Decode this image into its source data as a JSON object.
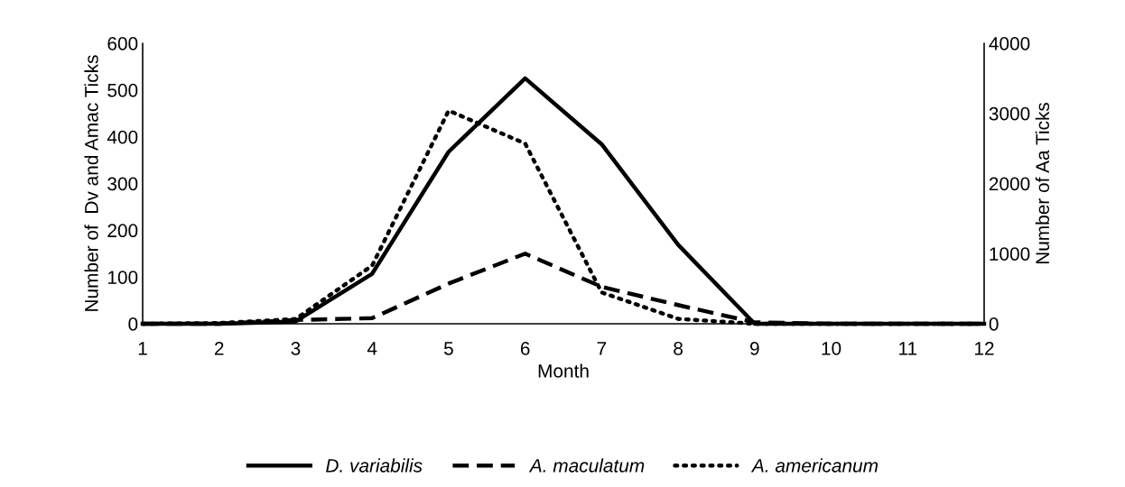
{
  "chart_data": {
    "type": "line",
    "xlabel": "Month",
    "ylabel": "Number of  Dv and Amac Ticks",
    "y2label": "Number of Aa Ticks",
    "x": [
      1,
      2,
      3,
      4,
      5,
      6,
      7,
      8,
      9,
      10,
      11,
      12
    ],
    "series": [
      {
        "name": "D. variabilis",
        "color": "#000000",
        "line_style": "solid",
        "values": [
          0,
          0,
          5,
          107,
          368,
          525,
          384,
          169,
          0,
          0,
          0,
          0
        ]
      },
      {
        "name": "A. maculatum",
        "color": "#000000",
        "line_style": "dashed",
        "values": [
          0,
          0,
          8,
          12,
          86,
          150,
          79,
          40,
          3,
          0,
          0,
          0
        ]
      },
      {
        "name": "A. americanum",
        "color": "#000000",
        "line_style": "dotted",
        "axis": "y2",
        "values": [
          0,
          10,
          67,
          830,
          3040,
          2570,
          447,
          70,
          0,
          0,
          0,
          0
        ]
      }
    ],
    "xlim": [
      1,
      12
    ],
    "xticks": [
      1,
      2,
      3,
      4,
      5,
      6,
      7,
      8,
      9,
      10,
      11,
      12
    ],
    "ylim": [
      0,
      600
    ],
    "yticks": [
      0,
      100,
      200,
      300,
      400,
      500,
      600
    ],
    "y2lim": [
      0,
      4000
    ],
    "y2ticks": [
      0,
      1000,
      2000,
      3000,
      4000
    ],
    "legend": "bottom",
    "grid": false,
    "marker": "none"
  }
}
